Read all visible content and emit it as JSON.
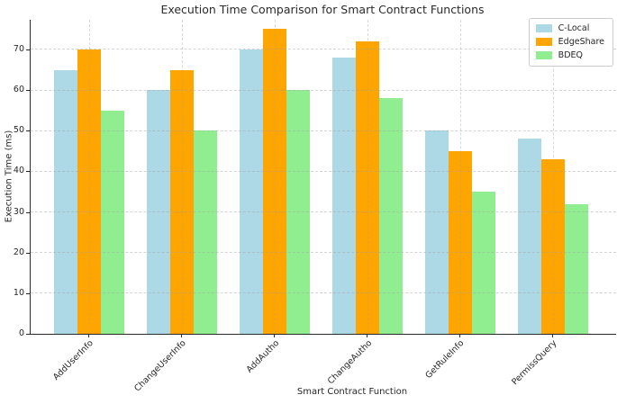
{
  "figure": {
    "background": "#ffffff",
    "text_color": "#262626",
    "spine_color": "#2a2a2a",
    "grid_color": "#c8c8c8",
    "legend_border_color": "#cccccc"
  },
  "chart_data": {
    "type": "bar",
    "title": "Execution Time Comparison for Smart Contract Functions",
    "xlabel": "Smart Contract Function",
    "ylabel": "Execution Time (ms)",
    "categories": [
      "AddUserInfo",
      "ChangeUserInfo",
      "AddAutho",
      "ChangeAutho",
      "GetRuleInfo",
      "PermissQuery"
    ],
    "series": [
      {
        "name": "C-Local",
        "color": "#ADD8E6",
        "values": [
          65,
          60,
          70,
          68,
          50,
          48
        ]
      },
      {
        "name": "EdgeShare",
        "color": "#FFA500",
        "values": [
          70,
          65,
          75,
          72,
          45,
          43
        ]
      },
      {
        "name": "BDEQ",
        "color": "#90EE90",
        "values": [
          55,
          50,
          60,
          58,
          35,
          32
        ]
      }
    ],
    "yticks": [
      0,
      10,
      20,
      30,
      40,
      50,
      60,
      70
    ],
    "ylim": [
      0,
      77.3
    ],
    "grid": true,
    "legend_position": "upper right"
  }
}
